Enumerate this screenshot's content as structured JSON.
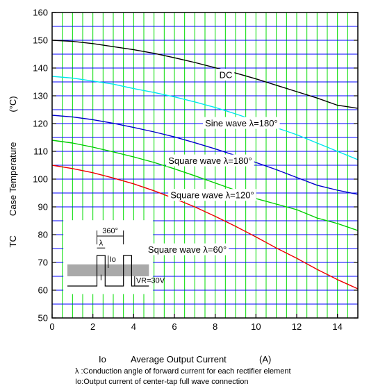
{
  "chart_data": {
    "type": "line",
    "xlabel_symbol": "Io",
    "xlabel": "Average Output Current",
    "xlabel_unit": "(A)",
    "ylabel_symbol": "TC",
    "ylabel": "Case Temperature",
    "ylabel_unit": "(°C)",
    "xlim": [
      0,
      15
    ],
    "ylim": [
      50,
      160
    ],
    "x_ticks": [
      0,
      2,
      4,
      6,
      8,
      10,
      12,
      14
    ],
    "y_ticks": [
      50,
      60,
      70,
      80,
      90,
      100,
      110,
      120,
      130,
      140,
      150,
      160
    ],
    "grid": true,
    "series": [
      {
        "name": "DC",
        "color": "#000000",
        "x": [
          0,
          1,
          2,
          3,
          4,
          5,
          6,
          7,
          8,
          9,
          10,
          11,
          12,
          13,
          14,
          15
        ],
        "y": [
          150,
          149.6,
          148.8,
          147.7,
          146.6,
          145.3,
          143.7,
          142,
          140.1,
          138.2,
          136.1,
          133.8,
          131.5,
          129.2,
          126.6,
          125.5
        ]
      },
      {
        "name": "Sine wave λ=180°",
        "color": "#00e5ee",
        "x": [
          0,
          1,
          2,
          3,
          4,
          5,
          6,
          7,
          8,
          9,
          10,
          11,
          12,
          13,
          14,
          15
        ],
        "y": [
          137,
          136.4,
          135.3,
          134.2,
          132.6,
          131.2,
          129.6,
          127.8,
          125.8,
          123.5,
          121,
          118.5,
          116,
          113,
          110,
          107
        ]
      },
      {
        "name": "Square wave λ=180°",
        "color": "#0000cc",
        "x": [
          0,
          1,
          2,
          3,
          4,
          5,
          6,
          7,
          8,
          9,
          10,
          11,
          12,
          13,
          14,
          15
        ],
        "y": [
          123,
          122.4,
          121.4,
          120.1,
          118.6,
          117,
          115.2,
          113.1,
          110.9,
          108.5,
          106,
          103.4,
          100.6,
          97.8,
          96,
          94.5
        ]
      },
      {
        "name": "Square wave λ=120°",
        "color": "#00cc00",
        "x": [
          0,
          1,
          2,
          3,
          4,
          5,
          6,
          7,
          8,
          9,
          10,
          11,
          12,
          13,
          14,
          15
        ],
        "y": [
          114,
          113,
          111.5,
          109.8,
          108,
          106,
          103.7,
          101.2,
          98.6,
          96,
          93,
          91,
          89,
          86,
          84,
          81.5
        ]
      },
      {
        "name": "Square wave λ=60°",
        "color": "#ee0000",
        "x": [
          0,
          1,
          2,
          3,
          4,
          5,
          6,
          7,
          8,
          9,
          10,
          11,
          12,
          13,
          14,
          15
        ],
        "y": [
          105,
          103.8,
          102.3,
          100.4,
          98.3,
          95.8,
          93,
          90,
          86.6,
          83,
          79.2,
          75.2,
          71.5,
          67.5,
          63.8,
          60.5
        ]
      }
    ],
    "annotations": [
      {
        "text": "DC",
        "x": 8.1,
        "y": 137.5
      },
      {
        "text": "Sine wave λ=180°",
        "x": 7.4,
        "y": 120.1
      },
      {
        "text": "Square wave λ=180°",
        "x": 5.6,
        "y": 106.6
      },
      {
        "text": "Square wave λ=120°",
        "x": 5.7,
        "y": 94.2
      },
      {
        "text": "Square wave λ=60°",
        "x": 4.6,
        "y": 74.6
      }
    ],
    "inset": {
      "angle_label": "360°",
      "lambda_label": "λ",
      "io_label": "Io",
      "vr_label": "VR=30V"
    },
    "notes": [
      "λ :Conduction angle of forward current for each rectifier element",
      "Io:Output current of center-tap full wave connection"
    ]
  }
}
